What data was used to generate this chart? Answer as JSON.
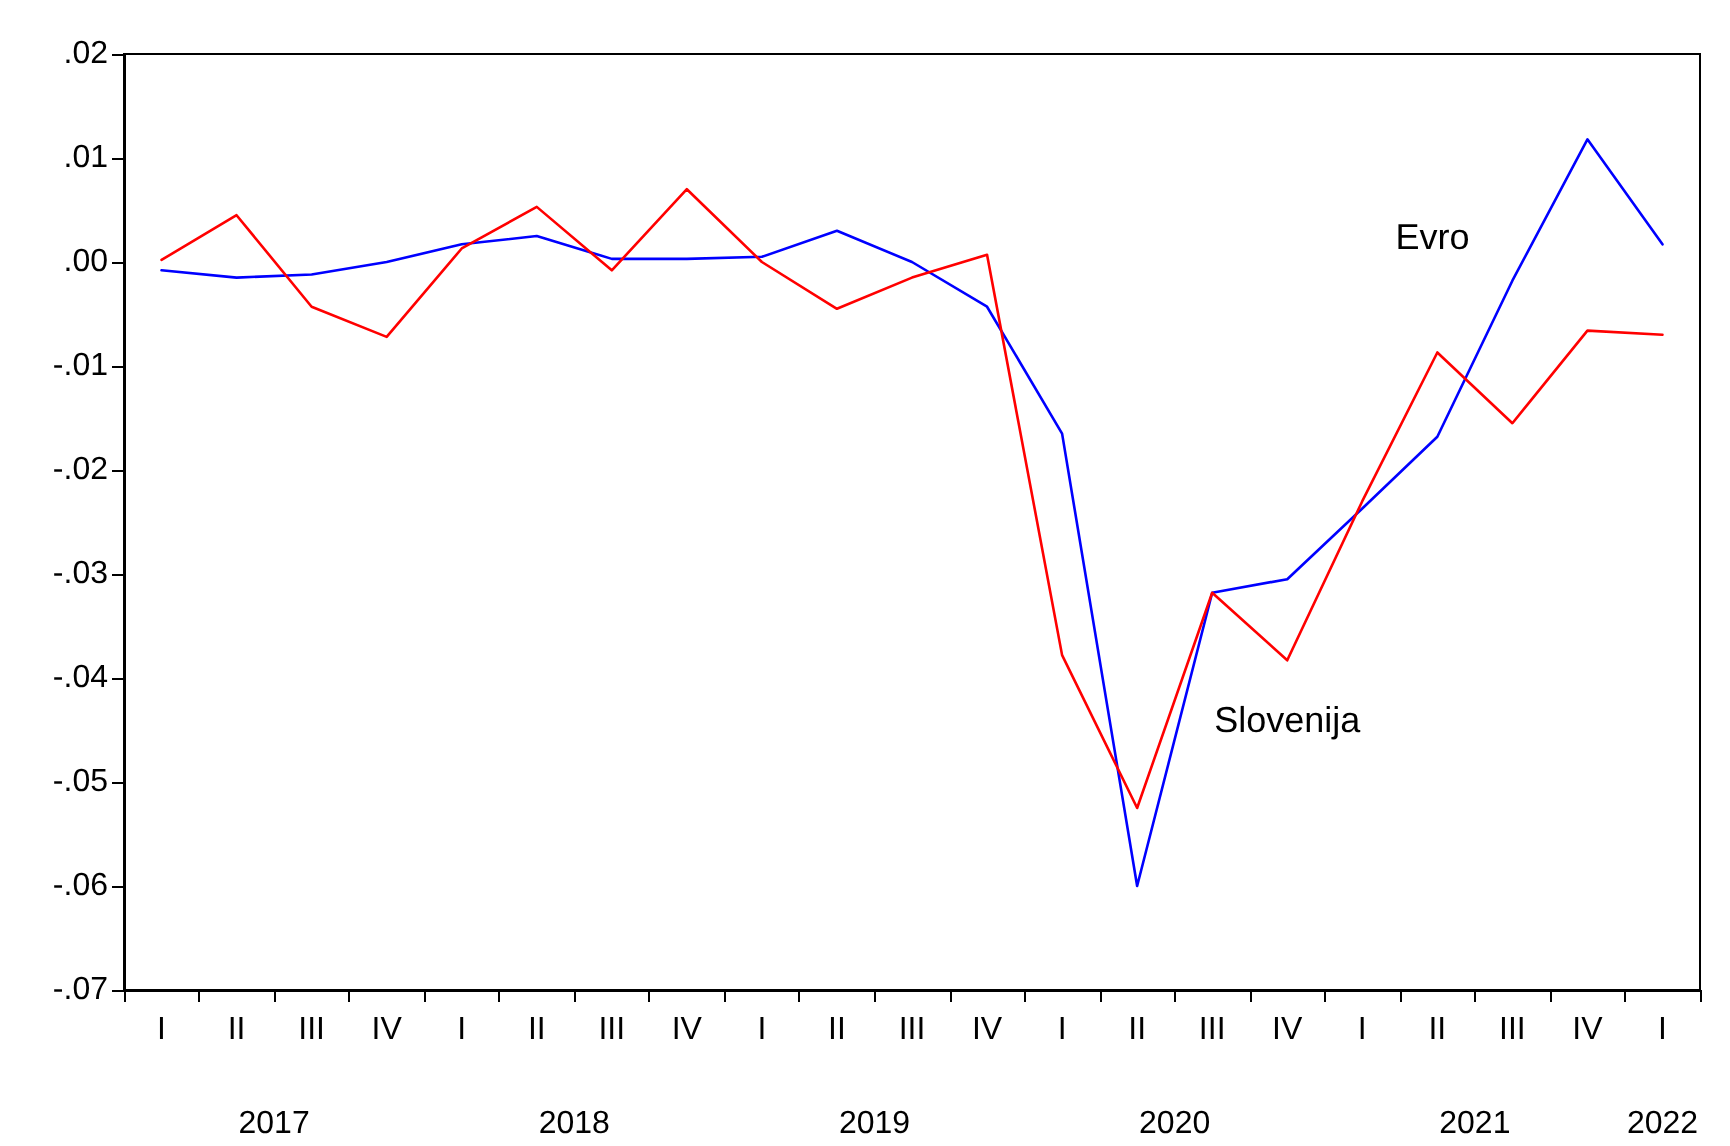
{
  "chart_data": {
    "type": "line",
    "categories": [
      "I",
      "II",
      "III",
      "IV",
      "I",
      "II",
      "III",
      "IV",
      "I",
      "II",
      "III",
      "IV",
      "I",
      "II",
      "III",
      "IV",
      "I",
      "II",
      "III",
      "IV",
      "I"
    ],
    "series": [
      {
        "name": "Evro",
        "color": "#0000ff",
        "values": [
          -0.0008,
          -0.0015,
          -0.0012,
          0.0,
          0.0017,
          0.0025,
          0.0003,
          0.0003,
          0.0005,
          0.003,
          0.0,
          -0.0043,
          -0.0165,
          -0.06,
          -0.0318,
          -0.0305,
          -0.0237,
          -0.0168,
          -0.0018,
          0.0118,
          0.0017
        ]
      },
      {
        "name": "Slovenija",
        "color": "#ff0000",
        "values": [
          0.0002,
          0.0045,
          -0.0043,
          -0.0072,
          0.0013,
          0.0053,
          -0.0008,
          0.007,
          0.0,
          -0.0045,
          -0.0015,
          0.0007,
          -0.0378,
          -0.0525,
          -0.0318,
          -0.0383,
          -0.023,
          -0.0087,
          -0.0155,
          -0.0066,
          -0.007
        ]
      }
    ],
    "ylim": [
      -0.07,
      0.02
    ],
    "yticks": [
      {
        "value": -0.07,
        "label": "-.07"
      },
      {
        "value": -0.06,
        "label": "-.06"
      },
      {
        "value": -0.05,
        "label": "-.05"
      },
      {
        "value": -0.04,
        "label": "-.04"
      },
      {
        "value": -0.03,
        "label": "-.03"
      },
      {
        "value": -0.02,
        "label": "-.02"
      },
      {
        "value": -0.01,
        "label": "-.01"
      },
      {
        "value": 0,
        "label": ".00"
      },
      {
        "value": 0.01,
        "label": ".01"
      },
      {
        "value": 0.02,
        "label": ".02"
      }
    ],
    "annotations": [
      "2017",
      "2018",
      "2019",
      "2020",
      "2021",
      "2022"
    ],
    "grid": false,
    "legend": false,
    "marker": "none",
    "line_style": "solid"
  }
}
